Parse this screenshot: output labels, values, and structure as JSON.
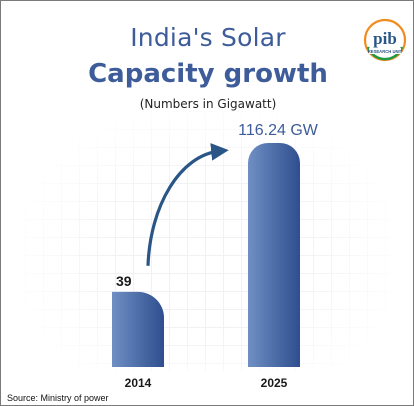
{
  "header": {
    "title_line1": "India's Solar",
    "title_line2": "Capacity growth",
    "subtitle": "(Numbers in Gigawatt)"
  },
  "logo": {
    "icon": "pib-research-unit-logo",
    "text": "pib",
    "subtext": "RESEARCH UNIT"
  },
  "chart_data": {
    "type": "bar",
    "categories": [
      "2014",
      "2025"
    ],
    "values": [
      39,
      116.24
    ],
    "data_labels": [
      "39",
      "116.24 GW"
    ],
    "title": "India's Solar Capacity growth",
    "subtitle": "(Numbers in Gigawatt)",
    "xlabel": "",
    "ylabel": "",
    "ylim": [
      0,
      116.24
    ],
    "grid": true,
    "colors": {
      "bar_start": "#6f8fc4",
      "bar_end": "#2e4e8e",
      "label_2025": "#3d5c99",
      "arrow": "#2a5687"
    },
    "annotation": "growth-arrow"
  },
  "footer": {
    "source": "Source: Ministry of power"
  }
}
